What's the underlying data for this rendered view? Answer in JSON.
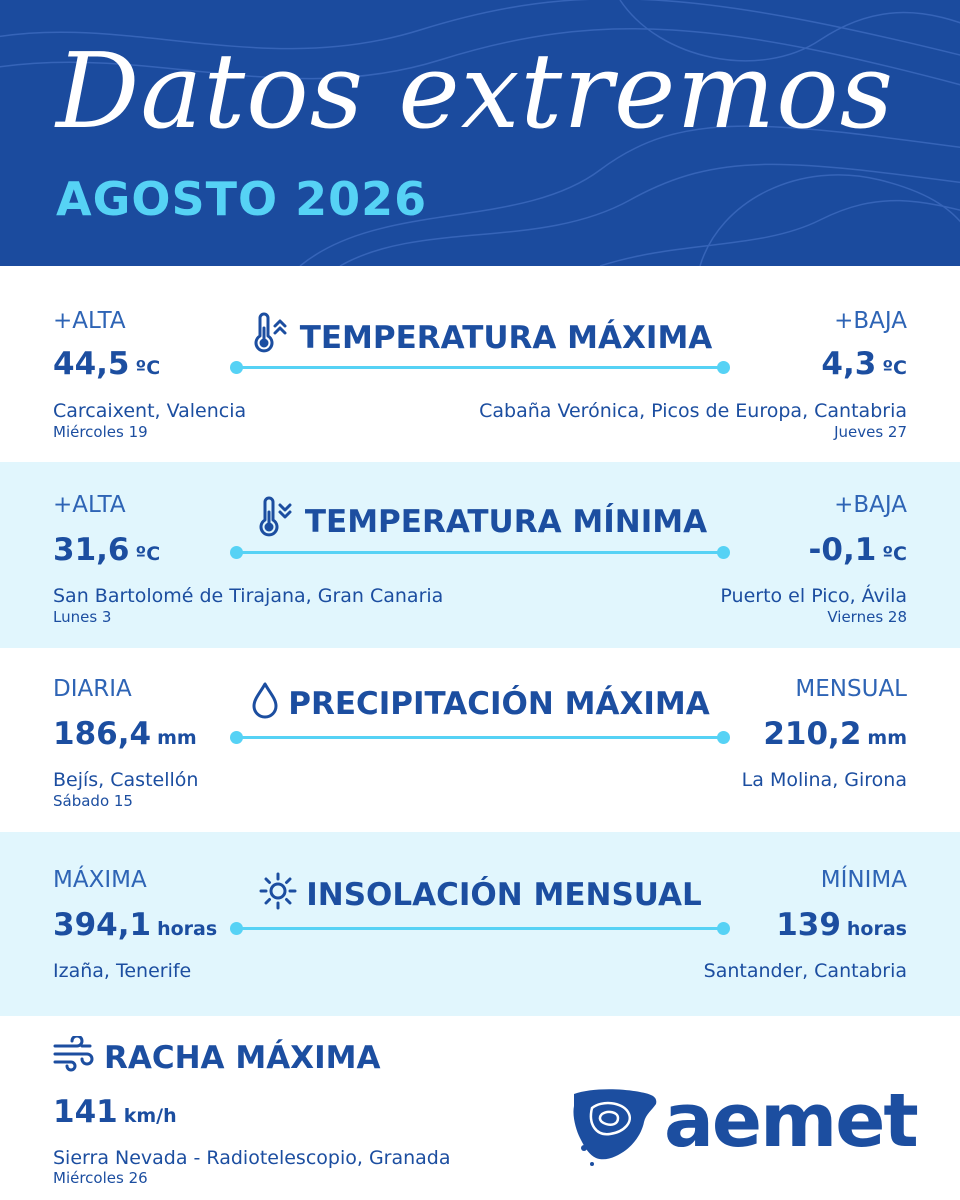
{
  "header": {
    "title": "Datos extremos",
    "subtitle": "AGOSTO 2026",
    "background_color": "#1b4b9e",
    "subtitle_color": "#56d2f5"
  },
  "temp_max": {
    "title": "TEMPERATURA MÁXIMA",
    "icon": "thermometer-up-icon",
    "left": {
      "label": "+ALTA",
      "value": "44,5",
      "unit": "ºC",
      "place": "Carcaixent, Valencia",
      "date": "Miércoles 19"
    },
    "right": {
      "label": "+BAJA",
      "value": "4,3",
      "unit": "ºC",
      "place": "Cabaña Verónica, Picos de Europa, Cantabria",
      "date": "Jueves 27"
    }
  },
  "temp_min": {
    "title": "TEMPERATURA MÍNIMA",
    "icon": "thermometer-down-icon",
    "left": {
      "label": "+ALTA",
      "value": "31,6",
      "unit": "ºC",
      "place": "San Bartolomé de Tirajana, Gran Canaria",
      "date": "Lunes 3"
    },
    "right": {
      "label": "+BAJA",
      "value": "-0,1",
      "unit": "ºC",
      "place": "Puerto el Pico, Ávila",
      "date": "Viernes 28"
    }
  },
  "precip": {
    "title": "PRECIPITACIÓN MÁXIMA",
    "icon": "water-drop-icon",
    "left": {
      "label": "DIARIA",
      "value": "186,4",
      "unit": "mm",
      "place": "Bejís, Castellón",
      "date": "Sábado 15"
    },
    "right": {
      "label": "MENSUAL",
      "value": "210,2",
      "unit": "mm",
      "place": "La Molina, Girona"
    }
  },
  "sun": {
    "title": "INSOLACIÓN MENSUAL",
    "icon": "sun-icon",
    "left": {
      "label": "MÁXIMA",
      "value": "394,1",
      "unit": "horas",
      "place": "Izaña, Tenerife"
    },
    "right": {
      "label": "MÍNIMA",
      "value": "139",
      "unit": "horas",
      "place": "Santander, Cantabria"
    }
  },
  "wind": {
    "title": "RACHA MÁXIMA",
    "icon": "wind-icon",
    "value": "141",
    "unit": "km/h",
    "place": "Sierra Nevada - Radiotelescopio, Granada",
    "date": "Miércoles 26"
  },
  "logo": {
    "text": "aemet",
    "icon": "iberian-peninsula-map-icon"
  },
  "colors": {
    "light_band": "#e1f6fd",
    "accent_line": "#56d2f5",
    "text_dark": "#1c4ea0"
  }
}
